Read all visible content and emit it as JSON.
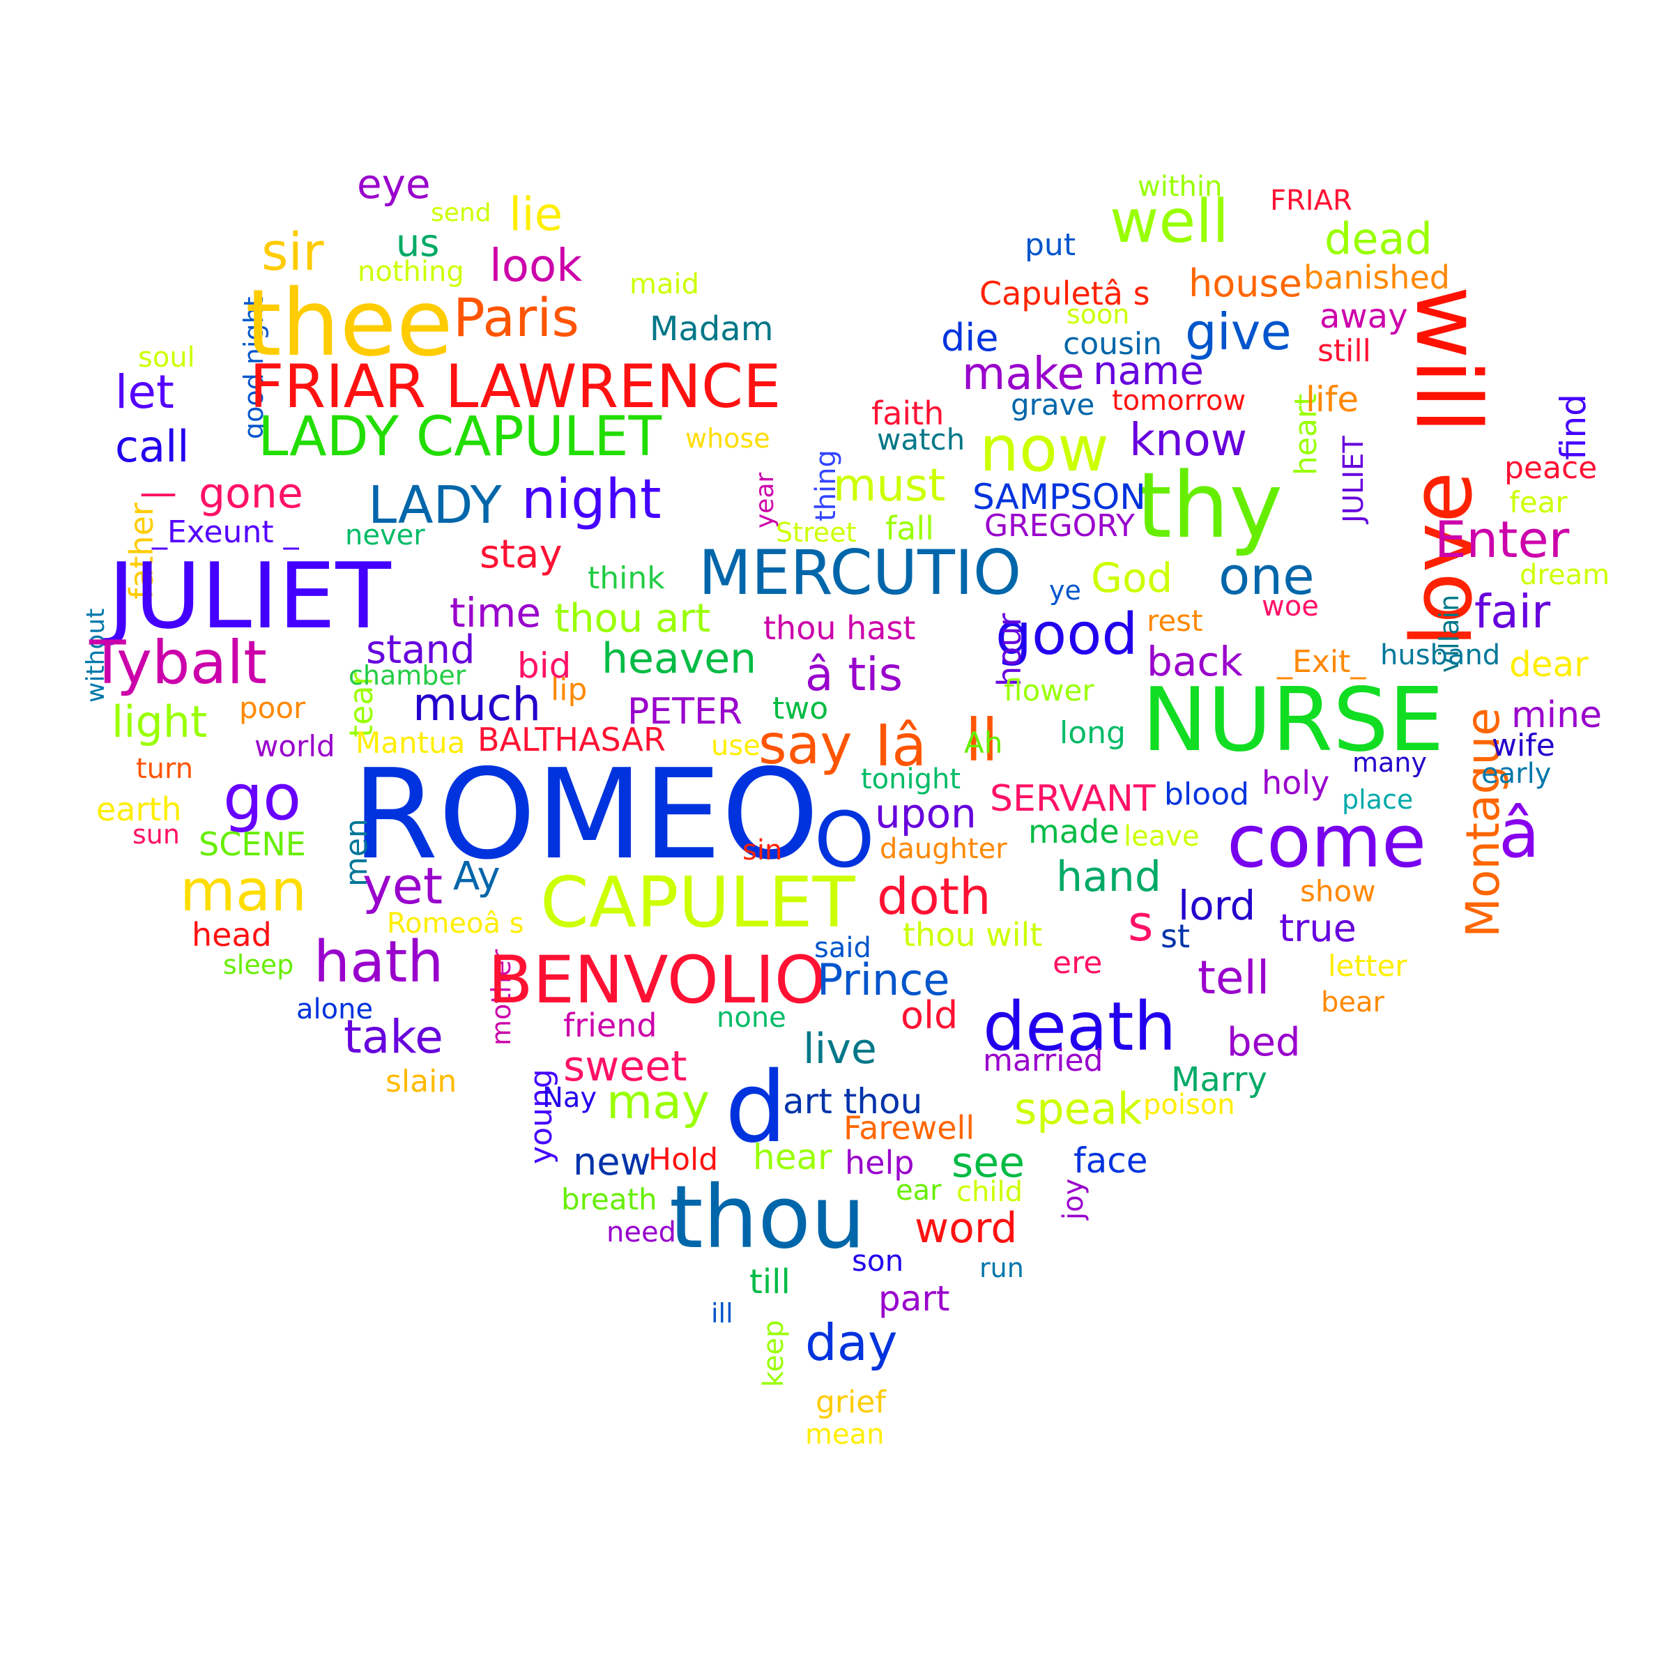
{
  "words": [
    {
      "id": "eye",
      "text": "eye",
      "color": "#9900cc"
    },
    {
      "id": "send",
      "text": "send",
      "color": "#ccff00"
    },
    {
      "id": "lie",
      "text": "lie",
      "color": "#ffee00"
    },
    {
      "id": "sir",
      "text": "sir",
      "color": "#ffcc00"
    },
    {
      "id": "us",
      "text": "us",
      "color": "#00aa66"
    },
    {
      "id": "nothing",
      "text": "nothing",
      "color": "#ccff00"
    },
    {
      "id": "look",
      "text": "look",
      "color": "#cc00aa"
    },
    {
      "id": "maid",
      "text": "maid",
      "color": "#ccff00"
    },
    {
      "id": "good-night",
      "text": "good night",
      "color": "#0055cc"
    },
    {
      "id": "thee",
      "text": "thee",
      "color": "#ffcc00"
    },
    {
      "id": "paris",
      "text": "Paris",
      "color": "#ff5500"
    },
    {
      "id": "madam",
      "text": "Madam",
      "color": "#007788"
    },
    {
      "id": "soul",
      "text": "soul",
      "color": "#ccff00"
    },
    {
      "id": "friar-lawrence",
      "text": "FRIAR LAWRENCE",
      "color": "#ff1111"
    },
    {
      "id": "let",
      "text": "let",
      "color": "#5500ff"
    },
    {
      "id": "lady-capulet",
      "text": "LADY CAPULET",
      "color": "#22dd00"
    },
    {
      "id": "whose",
      "text": "whose",
      "color": "#ffdd00"
    },
    {
      "id": "call",
      "text": "call",
      "color": "#2200ee"
    },
    {
      "id": "thing",
      "text": "thing",
      "color": "#3344ff"
    },
    {
      "id": "dash",
      "text": "—",
      "color": "#ff1166"
    },
    {
      "id": "gone",
      "text": "gone",
      "color": "#ff1166"
    },
    {
      "id": "lady",
      "text": "LADY",
      "color": "#0066aa"
    },
    {
      "id": "night",
      "text": "night",
      "color": "#4400ff"
    },
    {
      "id": "year",
      "text": "year",
      "color": "#cc00aa"
    },
    {
      "id": "father",
      "text": "father",
      "color": "#ffcc00"
    },
    {
      "id": "exeunt",
      "text": "_Exeunt _",
      "color": "#5500ff"
    },
    {
      "id": "never",
      "text": "never",
      "color": "#00bb66"
    },
    {
      "id": "street",
      "text": "Street",
      "color": "#ccff00"
    },
    {
      "id": "juliet",
      "text": "JULIET",
      "color": "#4400ff"
    },
    {
      "id": "stay",
      "text": "stay",
      "color": "#ff1133"
    },
    {
      "id": "without",
      "text": "without",
      "color": "#0077aa"
    },
    {
      "id": "think",
      "text": "think",
      "color": "#22cc44"
    },
    {
      "id": "time",
      "text": "time",
      "color": "#9900cc"
    },
    {
      "id": "thou-art",
      "text": "thou art",
      "color": "#99ff00"
    },
    {
      "id": "tybalt",
      "text": "Tybalt",
      "color": "#cc00aa"
    },
    {
      "id": "tear",
      "text": "tear",
      "color": "#99ff00"
    },
    {
      "id": "chamber",
      "text": "chamber",
      "color": "#22cc44"
    },
    {
      "id": "stand",
      "text": "stand",
      "color": "#6600dd"
    },
    {
      "id": "bid",
      "text": "bid",
      "color": "#ff1166"
    },
    {
      "id": "heaven",
      "text": "heaven",
      "color": "#00bb44"
    },
    {
      "id": "lip",
      "text": "lip",
      "color": "#ff8800"
    },
    {
      "id": "much",
      "text": "much",
      "color": "#2200cc"
    },
    {
      "id": "light",
      "text": "light",
      "color": "#99ff00"
    },
    {
      "id": "poor",
      "text": "poor",
      "color": "#ff8800"
    },
    {
      "id": "peter",
      "text": "PETER",
      "color": "#9900cc"
    },
    {
      "id": "two",
      "text": "two",
      "color": "#00bb44"
    },
    {
      "id": "world",
      "text": "world",
      "color": "#9900cc"
    },
    {
      "id": "mantua",
      "text": "Mantua",
      "color": "#ffee00"
    },
    {
      "id": "balthasar",
      "text": "BALTHASAR",
      "color": "#ff1133"
    },
    {
      "id": "use",
      "text": "use",
      "color": "#ffee00"
    },
    {
      "id": "turn",
      "text": "turn",
      "color": "#ff5500"
    },
    {
      "id": "go",
      "text": "go",
      "color": "#6600ff"
    },
    {
      "id": "romeo",
      "text": "ROMEO",
      "color": "#0033dd"
    },
    {
      "id": "earth",
      "text": "earth",
      "color": "#ffee00"
    },
    {
      "id": "sun",
      "text": "sun",
      "color": "#ff1166"
    },
    {
      "id": "scene",
      "text": "SCENE",
      "color": "#66ee00"
    },
    {
      "id": "men",
      "text": "men",
      "color": "#007799"
    },
    {
      "id": "man",
      "text": "man",
      "color": "#ffdd00"
    },
    {
      "id": "yet",
      "text": "yet",
      "color": "#9900cc"
    },
    {
      "id": "ay",
      "text": "Ay",
      "color": "#0066aa"
    },
    {
      "id": "capulet",
      "text": "CAPULET",
      "color": "#ccff00"
    },
    {
      "id": "sin",
      "text": "sin",
      "color": "#ff2200"
    },
    {
      "id": "romeos",
      "text": "Romeoâ s",
      "color": "#ffee00"
    },
    {
      "id": "head",
      "text": "head",
      "color": "#ff1111"
    },
    {
      "id": "sleep",
      "text": "sleep",
      "color": "#66ee00"
    },
    {
      "id": "hath",
      "text": "hath",
      "color": "#9900cc"
    },
    {
      "id": "mother",
      "text": "mother",
      "color": "#cc00aa"
    },
    {
      "id": "benvolio",
      "text": "BENVOLIO",
      "color": "#ff1133"
    },
    {
      "id": "alone",
      "text": "alone",
      "color": "#0033dd"
    },
    {
      "id": "take",
      "text": "take",
      "color": "#6600dd"
    },
    {
      "id": "friend",
      "text": "friend",
      "color": "#cc00aa"
    },
    {
      "id": "young",
      "text": "young",
      "color": "#4400ff"
    },
    {
      "id": "sweet",
      "text": "sweet",
      "color": "#ff1166"
    },
    {
      "id": "slain",
      "text": "slain",
      "color": "#ffbb00"
    },
    {
      "id": "may",
      "text": "may",
      "color": "#99ff00"
    },
    {
      "id": "nay",
      "text": "Nay",
      "color": "#2200ee"
    },
    {
      "id": "d",
      "text": "d",
      "color": "#0033dd"
    },
    {
      "id": "new",
      "text": "new",
      "color": "#0033aa"
    },
    {
      "id": "hold",
      "text": "Hold",
      "color": "#ff1111"
    },
    {
      "id": "breath",
      "text": "breath",
      "color": "#66ee00"
    },
    {
      "id": "need",
      "text": "need",
      "color": "#9900cc"
    },
    {
      "id": "thou",
      "text": "thou",
      "color": "#0066aa"
    },
    {
      "id": "well",
      "text": "well",
      "color": "#99ff00"
    },
    {
      "id": "within",
      "text": "within",
      "color": "#99ff00"
    },
    {
      "id": "friar",
      "text": "FRIAR",
      "color": "#ff1133"
    },
    {
      "id": "put",
      "text": "put",
      "color": "#0055cc"
    },
    {
      "id": "dead",
      "text": "dead",
      "color": "#99ff00"
    },
    {
      "id": "capulets",
      "text": "Capuletâ s",
      "color": "#ff2200"
    },
    {
      "id": "house",
      "text": "house",
      "color": "#ff6600"
    },
    {
      "id": "banished",
      "text": "banished",
      "color": "#ff8800"
    },
    {
      "id": "soon",
      "text": "soon",
      "color": "#ccff00"
    },
    {
      "id": "will",
      "text": "will",
      "color": "#ff1100"
    },
    {
      "id": "die",
      "text": "die",
      "color": "#0033dd"
    },
    {
      "id": "cousin",
      "text": "cousin",
      "color": "#0066aa"
    },
    {
      "id": "give",
      "text": "give",
      "color": "#0055cc"
    },
    {
      "id": "away",
      "text": "away",
      "color": "#cc00aa"
    },
    {
      "id": "still",
      "text": "still",
      "color": "#ff1133"
    },
    {
      "id": "make",
      "text": "make",
      "color": "#9900cc"
    },
    {
      "id": "name",
      "text": "name",
      "color": "#6600dd"
    },
    {
      "id": "faith",
      "text": "faith",
      "color": "#ff1133"
    },
    {
      "id": "grave",
      "text": "grave",
      "color": "#0066aa"
    },
    {
      "id": "tomorrow",
      "text": "tomorrow",
      "color": "#ff1111"
    },
    {
      "id": "heart",
      "text": "heart",
      "color": "#99ff00"
    },
    {
      "id": "life",
      "text": "life",
      "color": "#ff8800"
    },
    {
      "id": "watch",
      "text": "watch",
      "color": "#007788"
    },
    {
      "id": "now",
      "text": "now",
      "color": "#ccff00"
    },
    {
      "id": "know",
      "text": "know",
      "color": "#6600dd"
    },
    {
      "id": "juliet-small",
      "text": "JULIET",
      "color": "#6600dd"
    },
    {
      "id": "love",
      "text": "love",
      "color": "#ff2200"
    },
    {
      "id": "find",
      "text": "find",
      "color": "#4400ff"
    },
    {
      "id": "peace",
      "text": "peace",
      "color": "#ff1133"
    },
    {
      "id": "thy",
      "text": "thy",
      "color": "#66ee00"
    },
    {
      "id": "must",
      "text": "must",
      "color": "#ccff00"
    },
    {
      "id": "sampson",
      "text": "SAMPSON",
      "color": "#0033dd"
    },
    {
      "id": "fear",
      "text": "fear",
      "color": "#ccff00"
    },
    {
      "id": "fall",
      "text": "fall",
      "color": "#99ff00"
    },
    {
      "id": "gregory",
      "text": "GREGORY",
      "color": "#9900cc"
    },
    {
      "id": "villain",
      "text": "villain",
      "color": "#007788"
    },
    {
      "id": "enter",
      "text": "Enter",
      "color": "#cc00aa"
    },
    {
      "id": "mercutio",
      "text": "MERCUTIO",
      "color": "#0066aa"
    },
    {
      "id": "god",
      "text": "God",
      "color": "#ccff00"
    },
    {
      "id": "one",
      "text": "one",
      "color": "#0066aa"
    },
    {
      "id": "dream",
      "text": "dream",
      "color": "#ccff00"
    },
    {
      "id": "ye",
      "text": "ye",
      "color": "#0055cc"
    },
    {
      "id": "woe",
      "text": "woe",
      "color": "#ff1166"
    },
    {
      "id": "fair",
      "text": "fair",
      "color": "#6600dd"
    },
    {
      "id": "thou-hast",
      "text": "thou hast",
      "color": "#cc00aa"
    },
    {
      "id": "rest",
      "text": "rest",
      "color": "#ff8800"
    },
    {
      "id": "good",
      "text": "good",
      "color": "#2200ee"
    },
    {
      "id": "back",
      "text": "back",
      "color": "#9900cc"
    },
    {
      "id": "exit",
      "text": "_Exit_",
      "color": "#ff8800"
    },
    {
      "id": "husband",
      "text": "husband",
      "color": "#007799"
    },
    {
      "id": "dear",
      "text": "dear",
      "color": "#ffee00"
    },
    {
      "id": "tis",
      "text": "â tis",
      "color": "#9900cc"
    },
    {
      "id": "hour",
      "text": "hour",
      "color": "#6600dd"
    },
    {
      "id": "flower",
      "text": "flower",
      "color": "#99ff00"
    },
    {
      "id": "nurse",
      "text": "NURSE",
      "color": "#11dd22"
    },
    {
      "id": "montague",
      "text": "Montague",
      "color": "#ff6600"
    },
    {
      "id": "mine",
      "text": "mine",
      "color": "#9900cc"
    },
    {
      "id": "say",
      "text": "say",
      "color": "#ff5500"
    },
    {
      "id": "ia",
      "text": "Iâ",
      "color": "#ff5500"
    },
    {
      "id": "ll",
      "text": "ll",
      "color": "#ff5500"
    },
    {
      "id": "long",
      "text": "long",
      "color": "#00bb66"
    },
    {
      "id": "ah",
      "text": "Ah",
      "color": "#66ee00"
    },
    {
      "id": "wife",
      "text": "wife",
      "color": "#2200cc"
    },
    {
      "id": "many",
      "text": "many",
      "color": "#2200cc"
    },
    {
      "id": "early",
      "text": "early",
      "color": "#0077aa"
    },
    {
      "id": "tonight",
      "text": "tonight",
      "color": "#00bb66"
    },
    {
      "id": "servant",
      "text": "SERVANT",
      "color": "#ff1166"
    },
    {
      "id": "blood",
      "text": "blood",
      "color": "#0033dd"
    },
    {
      "id": "holy",
      "text": "holy",
      "color": "#9900cc"
    },
    {
      "id": "place",
      "text": "place",
      "color": "#00aaaa"
    },
    {
      "id": "o",
      "text": "O",
      "color": "#0033dd"
    },
    {
      "id": "upon",
      "text": "upon",
      "color": "#6600dd"
    },
    {
      "id": "come",
      "text": "come",
      "color": "#7700ee"
    },
    {
      "id": "a-circ",
      "text": "â",
      "color": "#8800ee"
    },
    {
      "id": "made",
      "text": "made",
      "color": "#00bb44"
    },
    {
      "id": "leave",
      "text": "leave",
      "color": "#ccff00"
    },
    {
      "id": "daughter",
      "text": "daughter",
      "color": "#ff8800"
    },
    {
      "id": "hand",
      "text": "hand",
      "color": "#00aa66"
    },
    {
      "id": "show",
      "text": "show",
      "color": "#ff8800"
    },
    {
      "id": "doth",
      "text": "doth",
      "color": "#ff1133"
    },
    {
      "id": "lord",
      "text": "lord",
      "color": "#2200cc"
    },
    {
      "id": "s",
      "text": "s",
      "color": "#ff1166"
    },
    {
      "id": "st",
      "text": "st",
      "color": "#0033aa"
    },
    {
      "id": "true",
      "text": "true",
      "color": "#6600dd"
    },
    {
      "id": "thou-wilt",
      "text": "thou wilt",
      "color": "#ccff00"
    },
    {
      "id": "said",
      "text": "said",
      "color": "#0055cc"
    },
    {
      "id": "prince",
      "text": "Prince",
      "color": "#0055cc"
    },
    {
      "id": "ere",
      "text": "ere",
      "color": "#ff1166"
    },
    {
      "id": "tell",
      "text": "tell",
      "color": "#9900cc"
    },
    {
      "id": "letter",
      "text": "letter",
      "color": "#ffee00"
    },
    {
      "id": "bear",
      "text": "bear",
      "color": "#ff8800"
    },
    {
      "id": "none",
      "text": "none",
      "color": "#00bb66"
    },
    {
      "id": "old",
      "text": "old",
      "color": "#ff1133"
    },
    {
      "id": "death",
      "text": "death",
      "color": "#2200ee"
    },
    {
      "id": "bed",
      "text": "bed",
      "color": "#9900cc"
    },
    {
      "id": "live",
      "text": "live",
      "color": "#007788"
    },
    {
      "id": "married",
      "text": "married",
      "color": "#9900cc"
    },
    {
      "id": "marry",
      "text": "Marry",
      "color": "#00aa66"
    },
    {
      "id": "art-thou",
      "text": "art thou",
      "color": "#0033aa"
    },
    {
      "id": "speak",
      "text": "speak",
      "color": "#ccff00"
    },
    {
      "id": "poison",
      "text": "poison",
      "color": "#ffee00"
    },
    {
      "id": "farewell",
      "text": "Farewell",
      "color": "#ff6600"
    },
    {
      "id": "hear",
      "text": "hear",
      "color": "#99ff00"
    },
    {
      "id": "help",
      "text": "help",
      "color": "#9900cc"
    },
    {
      "id": "see",
      "text": "see",
      "color": "#00bb44"
    },
    {
      "id": "face",
      "text": "face",
      "color": "#0033dd"
    },
    {
      "id": "joy",
      "text": "joy",
      "color": "#9900cc"
    },
    {
      "id": "ear",
      "text": "ear",
      "color": "#66ee00"
    },
    {
      "id": "child",
      "text": "child",
      "color": "#ccff00"
    },
    {
      "id": "word",
      "text": "word",
      "color": "#ff1111"
    },
    {
      "id": "run",
      "text": "run",
      "color": "#0077aa"
    },
    {
      "id": "son",
      "text": "son",
      "color": "#2200ee"
    },
    {
      "id": "till",
      "text": "till",
      "color": "#00bb44"
    },
    {
      "id": "part",
      "text": "part",
      "color": "#9900cc"
    },
    {
      "id": "ill",
      "text": "ill",
      "color": "#0055cc"
    },
    {
      "id": "keep",
      "text": "keep",
      "color": "#99ff00"
    },
    {
      "id": "day",
      "text": "day",
      "color": "#0033dd"
    },
    {
      "id": "grief",
      "text": "grief",
      "color": "#ffcc00"
    },
    {
      "id": "mean",
      "text": "mean",
      "color": "#ffee00"
    }
  ]
}
